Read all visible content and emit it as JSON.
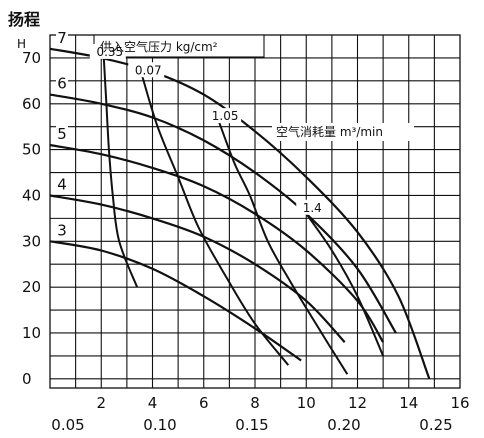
{
  "chart_data": {
    "type": "line",
    "title": "扬程",
    "ylabel": "H",
    "ylim": [
      0,
      75
    ],
    "y_ticks": [
      "70",
      "60",
      "50",
      "40",
      "30",
      "20",
      "10",
      "0"
    ],
    "x_ticks": [
      "2",
      "4",
      "6",
      "8",
      "10",
      "12",
      "14",
      "16"
    ],
    "x2_ticks": [
      "0.05",
      "0.10",
      "0.15",
      "0.20",
      "0.25"
    ],
    "legend_pressure_title": "供入空气压力 kg/cm²",
    "legend_air_title": "空气消耗量 m³/min",
    "head_curves": [
      {
        "label": "7",
        "points": [
          [
            0,
            72
          ],
          [
            2,
            70
          ],
          [
            4,
            67
          ],
          [
            6,
            62
          ],
          [
            8,
            54
          ],
          [
            10,
            44
          ],
          [
            12,
            32
          ],
          [
            13.6,
            18
          ],
          [
            14.8,
            0
          ]
        ]
      },
      {
        "label": "6",
        "points": [
          [
            0,
            62
          ],
          [
            2,
            60
          ],
          [
            4,
            57
          ],
          [
            6,
            52
          ],
          [
            8,
            45
          ],
          [
            10,
            36
          ],
          [
            12,
            24
          ],
          [
            13.5,
            10
          ]
        ]
      },
      {
        "label": "5",
        "points": [
          [
            0,
            51
          ],
          [
            2,
            49
          ],
          [
            4,
            46
          ],
          [
            6,
            42
          ],
          [
            8,
            36
          ],
          [
            10,
            28
          ],
          [
            12,
            17
          ],
          [
            13,
            8
          ]
        ]
      },
      {
        "label": "4",
        "points": [
          [
            0,
            40
          ],
          [
            2,
            38
          ],
          [
            4,
            35
          ],
          [
            6,
            31
          ],
          [
            8,
            25
          ],
          [
            10,
            17
          ],
          [
            11.5,
            8
          ]
        ]
      },
      {
        "label": "3",
        "points": [
          [
            0,
            30
          ],
          [
            2,
            28
          ],
          [
            4,
            24
          ],
          [
            6,
            18
          ],
          [
            8,
            11
          ],
          [
            9.8,
            4
          ]
        ]
      }
    ],
    "pressure_curves": [
      {
        "label": "0.35",
        "points": [
          [
            2.1,
            70
          ],
          [
            2.2,
            60
          ],
          [
            2.3,
            50
          ],
          [
            2.45,
            40
          ],
          [
            2.7,
            30
          ],
          [
            3.4,
            20
          ]
        ]
      },
      {
        "label": "0.07",
        "points": [
          [
            3.6,
            66
          ],
          [
            4.2,
            55
          ],
          [
            5,
            44
          ],
          [
            5.8,
            33
          ],
          [
            6.9,
            22
          ],
          [
            8,
            12
          ],
          [
            9.3,
            3
          ]
        ]
      },
      {
        "label": "1.05",
        "points": [
          [
            6.6,
            56
          ],
          [
            7.2,
            47
          ],
          [
            7.8,
            40
          ],
          [
            8.5,
            30
          ],
          [
            9.4,
            21
          ],
          [
            10.6,
            10
          ],
          [
            11.6,
            1
          ]
        ]
      },
      {
        "label": "1.4",
        "points": [
          [
            10,
            36
          ],
          [
            11,
            28
          ],
          [
            12,
            18
          ],
          [
            13,
            5
          ]
        ]
      }
    ]
  }
}
